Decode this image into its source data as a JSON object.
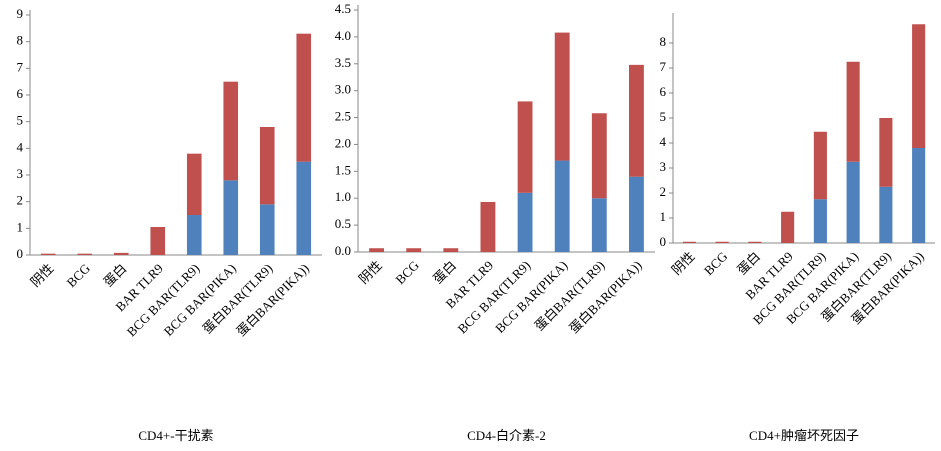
{
  "chart_data": [
    {
      "type": "stacked-bar",
      "title": "CD4+-干扰素",
      "categories": [
        "阴性",
        "BCG",
        "蛋白",
        "BAR TLR9",
        "BCG BAR(TLR9)",
        "BCG BAR(PIKA)",
        "蛋白BAR(TLR9)",
        "蛋白BAR(PIKA))"
      ],
      "series": [
        {
          "color": "#4f81bd",
          "values": [
            0,
            0,
            0,
            0,
            1.5,
            2.8,
            1.9,
            3.5
          ]
        },
        {
          "color": "#c0504d",
          "values": [
            0.05,
            0.05,
            0.08,
            1.05,
            2.3,
            3.7,
            2.9,
            4.8
          ]
        }
      ],
      "ylim": [
        0,
        9
      ],
      "yticks": [
        0,
        1,
        2,
        3,
        4,
        5,
        6,
        7,
        8,
        9
      ]
    },
    {
      "type": "stacked-bar",
      "title": "CD4-白介素-2",
      "categories": [
        "阴性",
        "BCG",
        "蛋白",
        "BAR TLR9",
        "BCG BAR(TLR9)",
        "BCG BAR(PIKA)",
        "蛋白BAR(TLR9)",
        "蛋白BAR(PIKA))"
      ],
      "series": [
        {
          "color": "#4f81bd",
          "values": [
            0,
            0,
            0,
            0,
            1.1,
            1.7,
            1.0,
            1.4
          ]
        },
        {
          "color": "#c0504d",
          "values": [
            0.07,
            0.07,
            0.07,
            0.93,
            1.7,
            2.38,
            1.58,
            2.08
          ]
        }
      ],
      "ylim": [
        0,
        4.5
      ],
      "yticks": [
        {
          "value": 0,
          "label": "0.0"
        },
        0.5,
        {
          "value": 1,
          "label": "1.0"
        },
        1.5,
        {
          "value": 2,
          "label": "2.0"
        },
        2.5,
        {
          "value": 3,
          "label": "3.0"
        },
        3.5,
        {
          "value": 4,
          "label": "4.0"
        },
        4.5
      ]
    },
    {
      "type": "stacked-bar",
      "title": "CD4+肿瘤坏死因子",
      "categories": [
        "阴性",
        "BCG",
        "蛋白",
        "BAR TLR9",
        "BCG BAR(TLR9)",
        "BCG BAR(PIKA)",
        "蛋白BAR(TLR9)",
        "蛋白BAR(PIKA))"
      ],
      "series": [
        {
          "color": "#4f81bd",
          "values": [
            0,
            0,
            0,
            0,
            1.75,
            3.25,
            2.25,
            3.8
          ]
        },
        {
          "color": "#c0504d",
          "values": [
            0.05,
            0.05,
            0.05,
            1.25,
            2.7,
            4.0,
            2.75,
            4.95
          ]
        }
      ],
      "ylim": [
        0,
        9
      ],
      "yticks": [
        0,
        1,
        2,
        3,
        4,
        5,
        6,
        7,
        8
      ]
    }
  ]
}
